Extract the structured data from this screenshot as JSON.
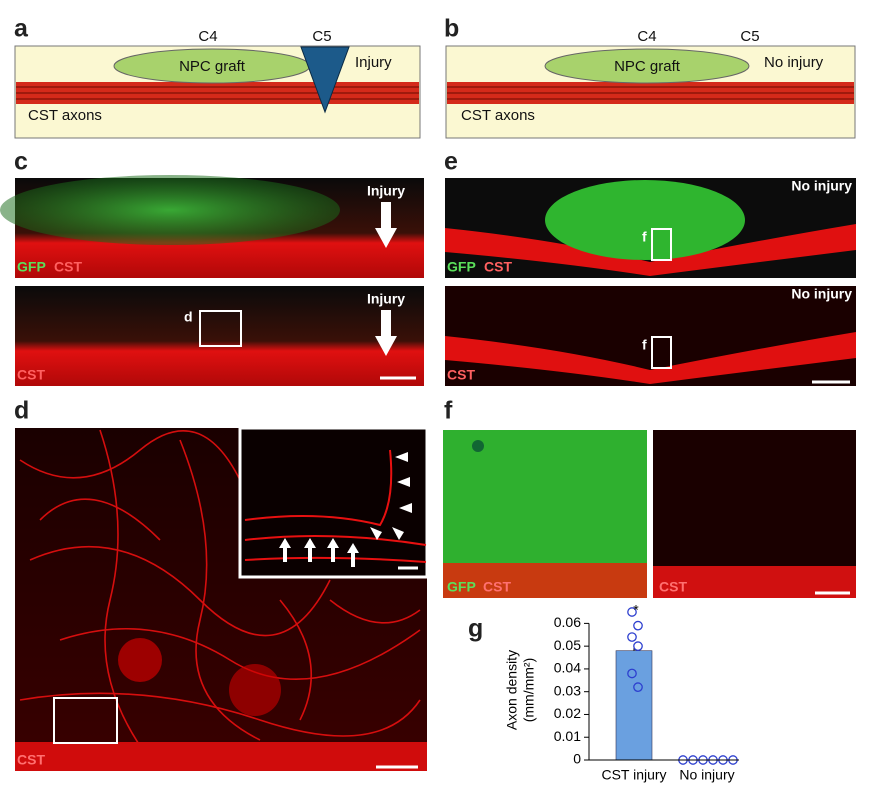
{
  "panels": {
    "a": {
      "label": "a",
      "c4": "C4",
      "c5": "C5",
      "graft": "NPC graft",
      "injury": "Injury",
      "axons": "CST axons"
    },
    "b": {
      "label": "b",
      "c4": "C4",
      "c5": "C5",
      "graft": "NPC graft",
      "injury": "No injury",
      "axons": "CST axons"
    },
    "c": {
      "label": "c",
      "top_stain_1": "GFP",
      "top_stain_2": "CST",
      "top_injury": "Injury",
      "bottom_stain": "CST",
      "bottom_injury": "Injury",
      "box": "d"
    },
    "d": {
      "label": "d",
      "stain": "CST"
    },
    "e": {
      "label": "e",
      "top_status": "No injury",
      "top_stain_1": "GFP",
      "top_stain_2": "CST",
      "top_box": "f",
      "bottom_status": "No injury",
      "bottom_box": "f",
      "bottom_stain": "CST"
    },
    "f": {
      "label": "f",
      "left_stain_1": "GFP",
      "left_stain_2": "CST",
      "right_stain": "CST"
    },
    "g": {
      "label": "g"
    }
  },
  "chart_data": {
    "type": "bar",
    "ylabel": [
      "Axon density",
      "(mm/mm²)"
    ],
    "categories": [
      "CST injury",
      "No injury"
    ],
    "values": [
      0.048,
      0
    ],
    "errors": [
      0.003,
      0
    ],
    "color": "#6aa0e0",
    "point_color": "#2d3fcf",
    "points": [
      [
        0.065,
        0.059,
        0.054,
        0.05,
        0.038,
        0.032
      ],
      [
        0,
        0,
        0,
        0,
        0,
        0
      ]
    ],
    "annotation": "*",
    "ylim": [
      0,
      0.065
    ],
    "yticks": [
      0,
      0.01,
      0.02,
      0.03,
      0.04,
      0.05,
      0.06
    ]
  }
}
